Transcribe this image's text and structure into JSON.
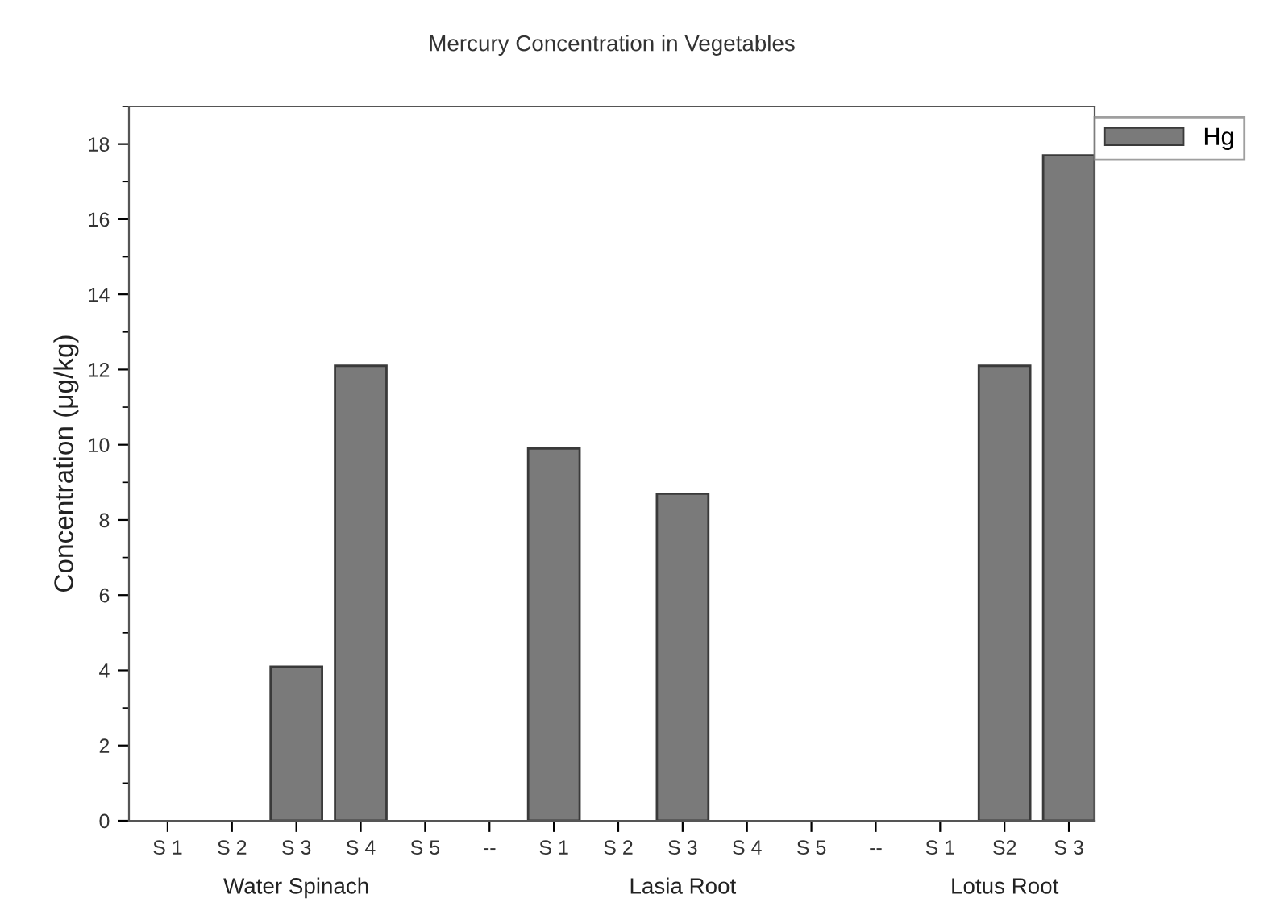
{
  "chart_data": {
    "type": "bar",
    "title": "Mercury Concentration in Vegetables",
    "ylabel": "Concentration (μg/kg)",
    "categories": [
      "S 1",
      "S 2",
      "S 3",
      "S 4",
      "S 5",
      "--",
      "S 1",
      "S 2",
      "S 3",
      "S 4",
      "S 5",
      "--",
      "S 1",
      "S2",
      "S 3"
    ],
    "series": [
      {
        "name": "Hg",
        "color": "#7a7a7a",
        "values": [
          null,
          null,
          4.1,
          12.1,
          null,
          null,
          9.9,
          null,
          8.7,
          null,
          null,
          null,
          null,
          12.1,
          17.7
        ]
      }
    ],
    "annotations": [
      "Water Spinach",
      "Lasia Root",
      "Lotus Root"
    ],
    "ylim": [
      0,
      19
    ],
    "yticks": [
      0,
      2,
      4,
      6,
      8,
      10,
      12,
      14,
      16,
      18
    ],
    "grid": false,
    "legend": "top right"
  }
}
